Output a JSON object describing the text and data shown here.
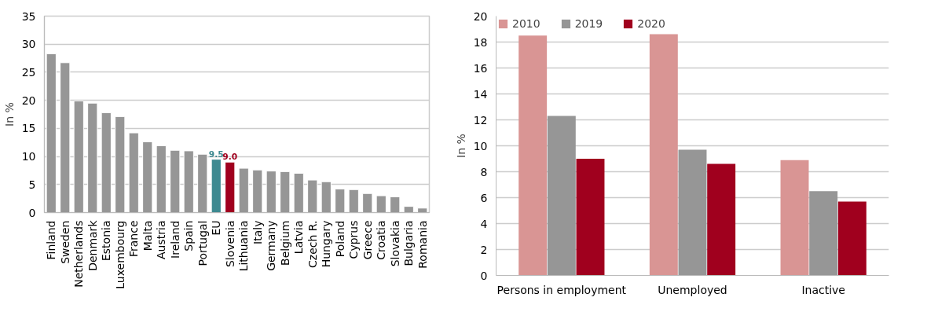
{
  "chart_data": [
    {
      "type": "bar",
      "ylabel": "In %",
      "categories": [
        "Finland",
        "Sweden",
        "Netherlands",
        "Denmark",
        "Estonia",
        "Luxembourg",
        "France",
        "Malta",
        "Austria",
        "Ireland",
        "Spain",
        "Portugal",
        "EU",
        "Slovenia",
        "Lithuania",
        "Italy",
        "Germany",
        "Belgium",
        "Latvia",
        "Czech R.",
        "Hungary",
        "Poland",
        "Cyprus",
        "Greece",
        "Croatia",
        "Slovakia",
        "Bulgaria",
        "Romania"
      ],
      "values": [
        28.3,
        26.7,
        19.9,
        19.5,
        17.8,
        17.1,
        14.2,
        12.6,
        11.9,
        11.1,
        11.0,
        10.4,
        9.5,
        9.0,
        7.9,
        7.6,
        7.4,
        7.3,
        7.0,
        5.8,
        5.5,
        4.2,
        4.1,
        3.4,
        3.0,
        2.8,
        1.1,
        0.8
      ],
      "colors": [
        "#969696",
        "#969696",
        "#969696",
        "#969696",
        "#969696",
        "#969696",
        "#969696",
        "#969696",
        "#969696",
        "#969696",
        "#969696",
        "#969696",
        "#3e8a91",
        "#a0001e",
        "#969696",
        "#969696",
        "#969696",
        "#969696",
        "#969696",
        "#969696",
        "#969696",
        "#969696",
        "#969696",
        "#969696",
        "#969696",
        "#969696",
        "#969696",
        "#969696"
      ],
      "value_labels": [
        null,
        null,
        null,
        null,
        null,
        null,
        null,
        null,
        null,
        null,
        null,
        null,
        "9.5",
        "9.0",
        null,
        null,
        null,
        null,
        null,
        null,
        null,
        null,
        null,
        null,
        null,
        null,
        null,
        null
      ],
      "ylim": [
        0,
        35
      ],
      "yticks": [
        0,
        5,
        10,
        15,
        20,
        25,
        30,
        35
      ],
      "grid": "y",
      "legend": false
    },
    {
      "type": "bar",
      "ylabel": "In %",
      "categories": [
        "Persons in employment",
        "Unemployed",
        "Inactive"
      ],
      "series": [
        {
          "name": "2010",
          "color": "#d99594",
          "values": [
            18.5,
            18.6,
            8.9
          ]
        },
        {
          "name": "2019",
          "color": "#969696",
          "values": [
            12.3,
            9.7,
            6.5
          ]
        },
        {
          "name": "2020",
          "color": "#a0001e",
          "values": [
            9.0,
            8.6,
            5.7
          ]
        }
      ],
      "ylim": [
        0,
        20
      ],
      "yticks": [
        0,
        2,
        4,
        6,
        8,
        10,
        12,
        14,
        16,
        18,
        20
      ],
      "grid": "y",
      "legend": "top left"
    }
  ]
}
